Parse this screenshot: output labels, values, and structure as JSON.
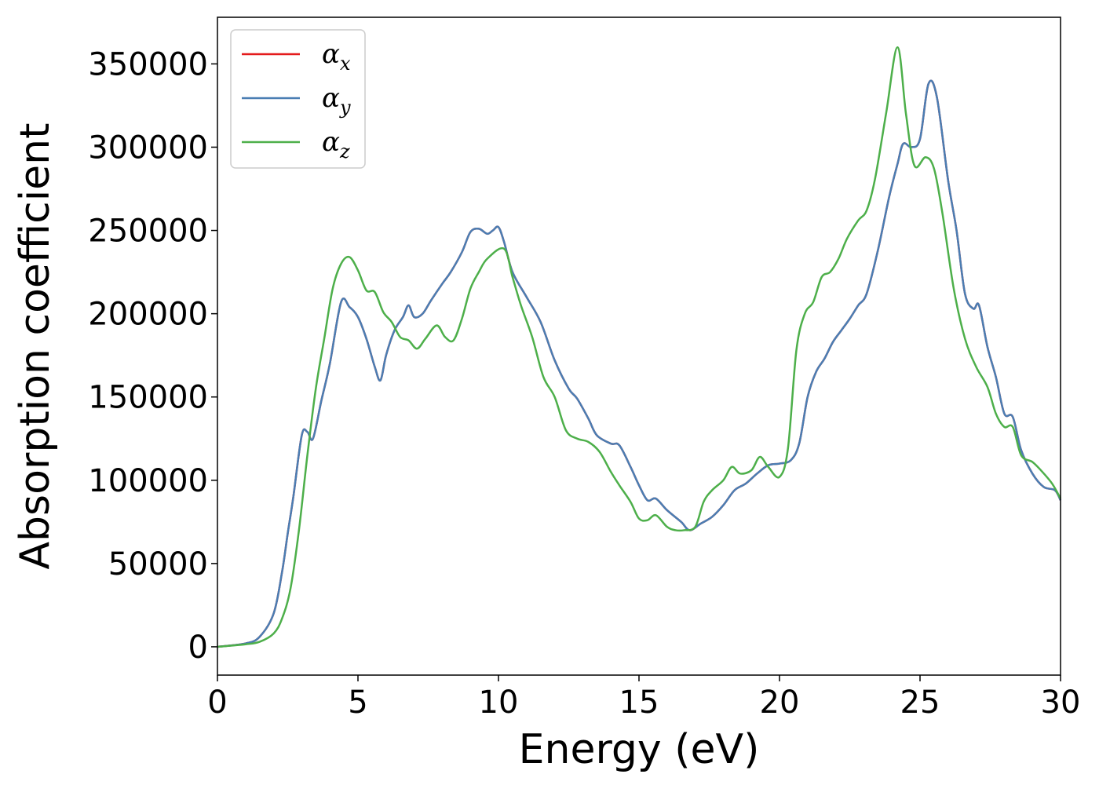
{
  "chart_data": {
    "type": "line",
    "xlabel": "Energy (eV)",
    "ylabel": "Absorption coefficient",
    "xlim": [
      0,
      30
    ],
    "ylim": [
      -17000,
      378000
    ],
    "xticks": [
      0,
      5,
      10,
      15,
      20,
      25,
      30
    ],
    "yticks": [
      0,
      50000,
      100000,
      150000,
      200000,
      250000,
      300000,
      350000
    ],
    "grid": false,
    "legend_position": "top-left",
    "series": [
      {
        "name": "αx",
        "symbol": "α",
        "subscript": "x",
        "color": "#e41a1c",
        "x": [
          0,
          1,
          1.5,
          2,
          2.3,
          2.5,
          2.7,
          3,
          3.2,
          3.4,
          3.7,
          4,
          4.4,
          4.7,
          5,
          5.3,
          5.6,
          5.8,
          6,
          6.3,
          6.6,
          6.8,
          7,
          7.3,
          7.6,
          8,
          8.3,
          8.7,
          9,
          9.3,
          9.6,
          9.8,
          10,
          10.2,
          10.5,
          11,
          11.5,
          12,
          12.5,
          12.8,
          13.2,
          13.5,
          14,
          14.3,
          14.7,
          15,
          15.3,
          15.6,
          16,
          16.5,
          16.8,
          17.2,
          17.6,
          18,
          18.4,
          18.8,
          19.2,
          19.6,
          20,
          20.4,
          20.7,
          21,
          21.3,
          21.6,
          21.9,
          22.2,
          22.5,
          22.8,
          23.1,
          23.5,
          23.9,
          24.2,
          24.4,
          24.7,
          25,
          25.3,
          25.6,
          26,
          26.3,
          26.6,
          26.9,
          27.1,
          27.4,
          27.7,
          28,
          28.3,
          28.6,
          29,
          29.4,
          29.8,
          30
        ],
        "values": [
          0,
          2000,
          6000,
          20000,
          45000,
          68000,
          90000,
          127000,
          129000,
          125000,
          148000,
          170000,
          207000,
          204000,
          198000,
          185000,
          168000,
          160000,
          175000,
          190000,
          198000,
          205000,
          198000,
          200000,
          208000,
          218000,
          225000,
          237000,
          249000,
          251000,
          248000,
          250000,
          252000,
          243000,
          225000,
          210000,
          195000,
          172000,
          155000,
          149000,
          137000,
          127000,
          122000,
          121000,
          108000,
          97000,
          88000,
          89000,
          82000,
          75000,
          70000,
          74000,
          78000,
          85000,
          94000,
          98000,
          104000,
          109000,
          110000,
          112000,
          122000,
          150000,
          165000,
          173000,
          183000,
          190000,
          197000,
          205000,
          212000,
          238000,
          270000,
          290000,
          302000,
          300000,
          305000,
          338000,
          330000,
          280000,
          250000,
          212000,
          203000,
          205000,
          180000,
          162000,
          140000,
          138000,
          118000,
          104000,
          96000,
          94000,
          88000
        ]
      },
      {
        "name": "αy",
        "symbol": "α",
        "subscript": "y",
        "color": "#4a7eb3",
        "x": [
          0,
          1,
          1.5,
          2,
          2.3,
          2.5,
          2.7,
          3,
          3.2,
          3.4,
          3.7,
          4,
          4.4,
          4.7,
          5,
          5.3,
          5.6,
          5.8,
          6,
          6.3,
          6.6,
          6.8,
          7,
          7.3,
          7.6,
          8,
          8.3,
          8.7,
          9,
          9.3,
          9.6,
          9.8,
          10,
          10.2,
          10.5,
          11,
          11.5,
          12,
          12.5,
          12.8,
          13.2,
          13.5,
          14,
          14.3,
          14.7,
          15,
          15.3,
          15.6,
          16,
          16.5,
          16.8,
          17.2,
          17.6,
          18,
          18.4,
          18.8,
          19.2,
          19.6,
          20,
          20.4,
          20.7,
          21,
          21.3,
          21.6,
          21.9,
          22.2,
          22.5,
          22.8,
          23.1,
          23.5,
          23.9,
          24.2,
          24.4,
          24.7,
          25,
          25.3,
          25.6,
          26,
          26.3,
          26.6,
          26.9,
          27.1,
          27.4,
          27.7,
          28,
          28.3,
          28.6,
          29,
          29.4,
          29.8,
          30
        ],
        "values": [
          0,
          2000,
          6000,
          20000,
          45000,
          68000,
          90000,
          127000,
          129000,
          125000,
          148000,
          170000,
          207000,
          204000,
          198000,
          185000,
          168000,
          160000,
          175000,
          190000,
          198000,
          205000,
          198000,
          200000,
          208000,
          218000,
          225000,
          237000,
          249000,
          251000,
          248000,
          250000,
          252000,
          243000,
          225000,
          210000,
          195000,
          172000,
          155000,
          149000,
          137000,
          127000,
          122000,
          121000,
          108000,
          97000,
          88000,
          89000,
          82000,
          75000,
          70000,
          74000,
          78000,
          85000,
          94000,
          98000,
          104000,
          109000,
          110000,
          112000,
          122000,
          150000,
          165000,
          173000,
          183000,
          190000,
          197000,
          205000,
          212000,
          238000,
          270000,
          290000,
          302000,
          300000,
          305000,
          338000,
          330000,
          280000,
          250000,
          212000,
          203000,
          205000,
          180000,
          162000,
          140000,
          138000,
          118000,
          104000,
          96000,
          94000,
          88000
        ]
      },
      {
        "name": "αz",
        "symbol": "α",
        "subscript": "z",
        "color": "#4daf4a",
        "x": [
          0,
          1,
          1.5,
          2,
          2.3,
          2.6,
          2.9,
          3.2,
          3.5,
          3.8,
          4.1,
          4.4,
          4.7,
          5,
          5.3,
          5.6,
          5.9,
          6.2,
          6.5,
          6.8,
          7.1,
          7.4,
          7.8,
          8.1,
          8.4,
          8.7,
          9,
          9.3,
          9.6,
          10.2,
          10.5,
          10.8,
          11.2,
          11.6,
          12,
          12.4,
          12.8,
          13.2,
          13.6,
          14,
          14.3,
          14.7,
          15,
          15.3,
          15.6,
          16,
          16.3,
          16.6,
          17,
          17.3,
          17.6,
          18,
          18.3,
          18.6,
          19,
          19.3,
          19.6,
          20,
          20.3,
          20.6,
          20.9,
          21.2,
          21.5,
          21.8,
          22.1,
          22.4,
          22.8,
          23.1,
          23.4,
          23.8,
          24.2,
          24.5,
          24.8,
          25.2,
          25.5,
          25.8,
          26.2,
          26.6,
          27,
          27.4,
          27.7,
          28,
          28.3,
          28.6,
          29,
          29.3,
          29.7,
          30
        ],
        "values": [
          0,
          1500,
          3000,
          8000,
          17000,
          35000,
          70000,
          115000,
          155000,
          185000,
          215000,
          230000,
          234000,
          226000,
          214000,
          213000,
          201000,
          195000,
          186000,
          184000,
          179000,
          185000,
          193000,
          186000,
          184000,
          197000,
          215000,
          225000,
          233000,
          239000,
          222000,
          205000,
          186000,
          162000,
          150000,
          130000,
          125000,
          123000,
          117000,
          105000,
          97000,
          87000,
          77000,
          76000,
          79000,
          72000,
          70000,
          70000,
          72000,
          87000,
          94000,
          100000,
          108000,
          104000,
          106000,
          114000,
          108000,
          102000,
          119000,
          178000,
          200000,
          207000,
          222000,
          225000,
          233000,
          245000,
          256000,
          262000,
          281000,
          321000,
          360000,
          320000,
          289000,
          294000,
          287000,
          260000,
          215000,
          185000,
          168000,
          156000,
          140000,
          132000,
          132000,
          115000,
          111000,
          106000,
          98000,
          89000
        ]
      }
    ]
  }
}
